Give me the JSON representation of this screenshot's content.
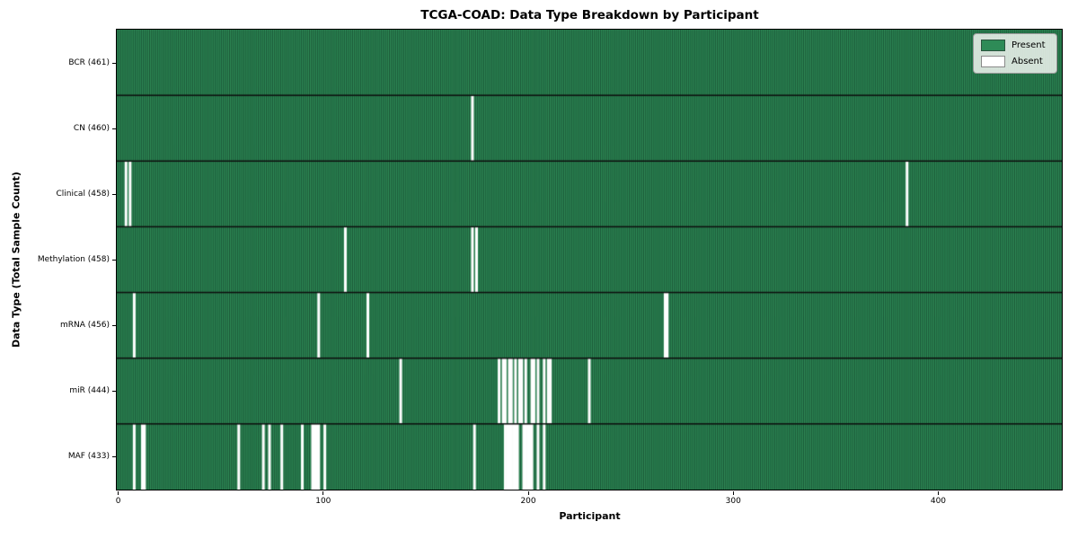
{
  "chart_data": {
    "type": "heatmap",
    "title": "TCGA-COAD: Data Type Breakdown by Participant",
    "xlabel": "Participant",
    "ylabel": "Data Type (Total Sample Count)",
    "x_ticks": [
      0,
      100,
      200,
      300,
      400
    ],
    "n_participants": 461,
    "xlim": [
      -0.5,
      460.5
    ],
    "grid": false,
    "legend": {
      "position": "upper right",
      "entries": [
        {
          "label": "Present",
          "color": "#2e8b57"
        },
        {
          "label": "Absent",
          "color": "#ffffff"
        }
      ]
    },
    "colors": {
      "present": "#2e8b57",
      "absent": "#ffffff",
      "bar_edge": "rgba(10,38,24,0.9)",
      "row_separator": "#0d0d0d"
    },
    "rows": [
      {
        "label": "BCR (461)",
        "data_type": "BCR",
        "present_count": 461,
        "absent_participants": []
      },
      {
        "label": "CN (460)",
        "data_type": "CN",
        "present_count": 460,
        "absent_participants": [
          173
        ]
      },
      {
        "label": "Clinical (458)",
        "data_type": "Clinical",
        "present_count": 458,
        "absent_participants": [
          4,
          6,
          385
        ]
      },
      {
        "label": "Methylation (458)",
        "data_type": "Methylation",
        "present_count": 458,
        "absent_participants": [
          111,
          173,
          175
        ]
      },
      {
        "label": "mRNA (456)",
        "data_type": "mRNA",
        "present_count": 456,
        "absent_participants": [
          8,
          98,
          122,
          267,
          268
        ]
      },
      {
        "label": "miR (444)",
        "data_type": "miR",
        "present_count": 444,
        "absent_participants": [
          138,
          186,
          188,
          189,
          191,
          192,
          194,
          196,
          197,
          199,
          202,
          203,
          205,
          208,
          210,
          211,
          230
        ]
      },
      {
        "label": "MAF (433)",
        "data_type": "MAF",
        "present_count": 433,
        "absent_participants": [
          8,
          12,
          13,
          59,
          71,
          74,
          80,
          90,
          95,
          96,
          97,
          98,
          101,
          174,
          189,
          190,
          191,
          192,
          193,
          194,
          195,
          198,
          199,
          200,
          201,
          202,
          205,
          208
        ]
      }
    ]
  }
}
